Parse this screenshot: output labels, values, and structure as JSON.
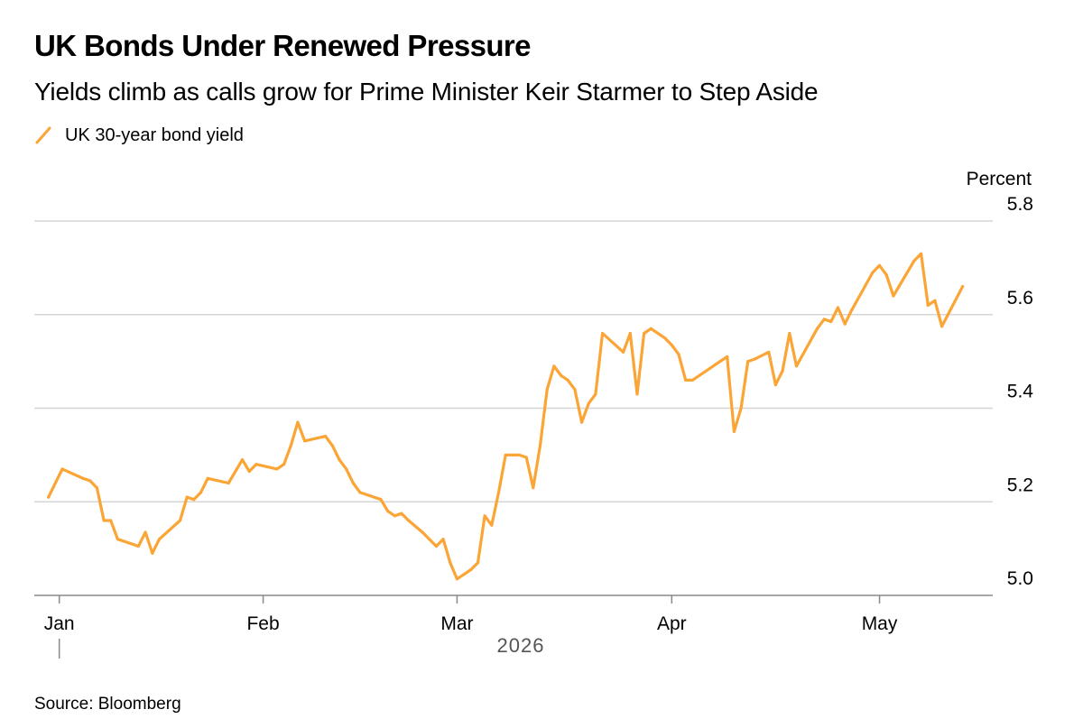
{
  "header": {
    "title": "UK Bonds Under Renewed Pressure",
    "subtitle": "Yields climb as calls grow for Prime Minister Keir Starmer to Step Aside"
  },
  "legend": {
    "label": "UK 30-year bond yield"
  },
  "footer": {
    "source": "Source: Bloomberg"
  },
  "colors": {
    "series": "#FAA535",
    "grid": "#d6d6d6",
    "axis": "#8a8a8a",
    "text": "#000000"
  },
  "chart_data": {
    "type": "line",
    "title": "UK Bonds Under Renewed Pressure",
    "subtitle": "Yields climb as calls grow for Prime Minister Keir Starmer to Step Aside",
    "ylabel": "Percent",
    "xlabel": "2026",
    "ylim": [
      5.0,
      5.8
    ],
    "yticks": [
      5.0,
      5.2,
      5.4,
      5.6,
      5.8
    ],
    "ytick_labels": [
      "5.0",
      "5.2",
      "5.4",
      "5.6",
      "5.8"
    ],
    "xlim": [
      "2025-12-31",
      "2026-05-18"
    ],
    "xticks": [
      {
        "date": "2026-01-01",
        "label": "Jan"
      },
      {
        "date": "2026-02-01",
        "label": "Feb"
      },
      {
        "date": "2026-03-01",
        "label": "Mar"
      },
      {
        "date": "2026-04-01",
        "label": "Apr"
      },
      {
        "date": "2026-05-01",
        "label": "May"
      }
    ],
    "grid": true,
    "legend_position": "top-left",
    "series": [
      {
        "name": "UK 30-year bond yield",
        "color": "#FAA535",
        "points": [
          [
            "2026-01-01",
            5.21
          ],
          [
            "2026-01-03",
            5.27
          ],
          [
            "2026-01-06",
            5.25
          ],
          [
            "2026-01-07",
            5.245
          ],
          [
            "2026-01-08",
            5.23
          ],
          [
            "2026-01-09",
            5.16
          ],
          [
            "2026-01-10",
            5.16
          ],
          [
            "2026-01-11",
            5.12
          ],
          [
            "2026-01-13",
            5.11
          ],
          [
            "2026-01-14",
            5.105
          ],
          [
            "2026-01-15",
            5.135
          ],
          [
            "2026-01-16",
            5.09
          ],
          [
            "2026-01-17",
            5.12
          ],
          [
            "2026-01-20",
            5.16
          ],
          [
            "2026-01-21",
            5.21
          ],
          [
            "2026-01-22",
            5.205
          ],
          [
            "2026-01-23",
            5.22
          ],
          [
            "2026-01-24",
            5.25
          ],
          [
            "2026-01-27",
            5.24
          ],
          [
            "2026-01-29",
            5.29
          ],
          [
            "2026-01-30",
            5.265
          ],
          [
            "2026-01-31",
            5.28
          ],
          [
            "2026-02-03",
            5.27
          ],
          [
            "2026-02-04",
            5.28
          ],
          [
            "2026-02-05",
            5.32
          ],
          [
            "2026-02-06",
            5.37
          ],
          [
            "2026-02-07",
            5.33
          ],
          [
            "2026-02-10",
            5.34
          ],
          [
            "2026-02-11",
            5.32
          ],
          [
            "2026-02-12",
            5.29
          ],
          [
            "2026-02-13",
            5.27
          ],
          [
            "2026-02-14",
            5.24
          ],
          [
            "2026-02-15",
            5.22
          ],
          [
            "2026-02-18",
            5.205
          ],
          [
            "2026-02-19",
            5.18
          ],
          [
            "2026-02-20",
            5.17
          ],
          [
            "2026-02-21",
            5.175
          ],
          [
            "2026-02-22",
            5.16
          ],
          [
            "2026-02-24",
            5.135
          ],
          [
            "2026-02-26",
            5.105
          ],
          [
            "2026-02-27",
            5.12
          ],
          [
            "2026-02-28",
            5.07
          ],
          [
            "2026-03-01",
            5.035
          ],
          [
            "2026-03-02",
            5.045
          ],
          [
            "2026-03-03",
            5.055
          ],
          [
            "2026-03-04",
            5.07
          ],
          [
            "2026-03-05",
            5.17
          ],
          [
            "2026-03-06",
            5.15
          ],
          [
            "2026-03-07",
            5.22
          ],
          [
            "2026-03-08",
            5.3
          ],
          [
            "2026-03-10",
            5.3
          ],
          [
            "2026-03-11",
            5.295
          ],
          [
            "2026-03-12",
            5.23
          ],
          [
            "2026-03-13",
            5.32
          ],
          [
            "2026-03-14",
            5.44
          ],
          [
            "2026-03-15",
            5.49
          ],
          [
            "2026-03-16",
            5.47
          ],
          [
            "2026-03-17",
            5.46
          ],
          [
            "2026-03-18",
            5.44
          ],
          [
            "2026-03-19",
            5.37
          ],
          [
            "2026-03-20",
            5.41
          ],
          [
            "2026-03-21",
            5.43
          ],
          [
            "2026-03-22",
            5.56
          ],
          [
            "2026-03-25",
            5.52
          ],
          [
            "2026-03-26",
            5.56
          ],
          [
            "2026-03-27",
            5.43
          ],
          [
            "2026-03-28",
            5.56
          ],
          [
            "2026-03-29",
            5.57
          ],
          [
            "2026-03-31",
            5.55
          ],
          [
            "2026-04-01",
            5.535
          ],
          [
            "2026-04-02",
            5.515
          ],
          [
            "2026-04-03",
            5.46
          ],
          [
            "2026-04-04",
            5.46
          ],
          [
            "2026-04-08",
            5.5
          ],
          [
            "2026-04-09",
            5.51
          ],
          [
            "2026-04-10",
            5.35
          ],
          [
            "2026-04-11",
            5.4
          ],
          [
            "2026-04-12",
            5.5
          ],
          [
            "2026-04-13",
            5.505
          ],
          [
            "2026-04-15",
            5.52
          ],
          [
            "2026-04-16",
            5.45
          ],
          [
            "2026-04-17",
            5.48
          ],
          [
            "2026-04-18",
            5.56
          ],
          [
            "2026-04-19",
            5.49
          ],
          [
            "2026-04-22",
            5.57
          ],
          [
            "2026-04-23",
            5.59
          ],
          [
            "2026-04-24",
            5.585
          ],
          [
            "2026-04-25",
            5.615
          ],
          [
            "2026-04-26",
            5.58
          ],
          [
            "2026-04-27",
            5.61
          ],
          [
            "2026-04-30",
            5.69
          ],
          [
            "2026-05-01",
            5.705
          ],
          [
            "2026-05-02",
            5.685
          ],
          [
            "2026-05-03",
            5.64
          ],
          [
            "2026-05-06",
            5.715
          ],
          [
            "2026-05-07",
            5.73
          ],
          [
            "2026-05-08",
            5.62
          ],
          [
            "2026-05-09",
            5.63
          ],
          [
            "2026-05-10",
            5.575
          ],
          [
            "2026-05-13",
            5.66
          ]
        ]
      }
    ]
  }
}
